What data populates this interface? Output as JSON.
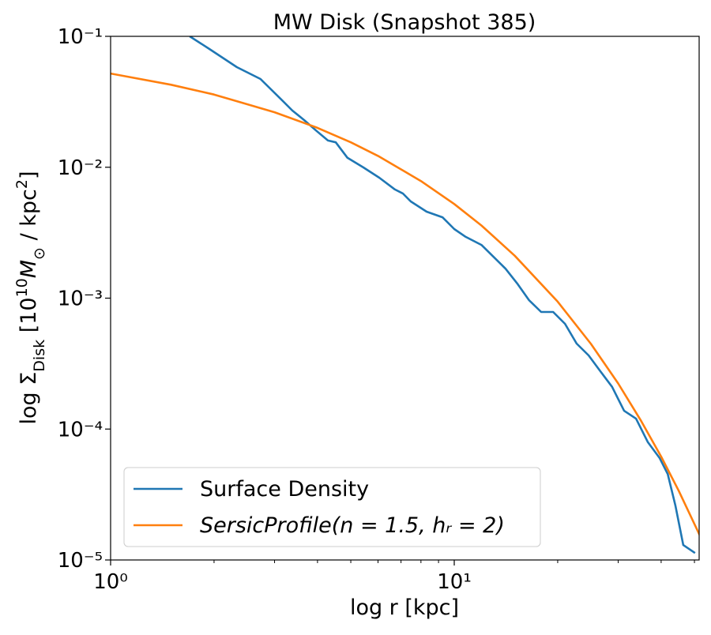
{
  "chart_data": {
    "type": "line",
    "title": "MW Disk (Snapshot 385)",
    "xlabel": "log r [kpc]",
    "ylabel_parts": [
      "log Σ",
      "Disk",
      " [10",
      "10",
      "M",
      "⊙",
      " / kpc",
      "2",
      "]"
    ],
    "xscale": "log",
    "yscale": "log",
    "xlim": [
      1,
      51.6
    ],
    "ylim": [
      1e-05,
      0.1
    ],
    "xticks": [
      {
        "value": 1,
        "label": "10⁰"
      },
      {
        "value": 10,
        "label": "10¹"
      }
    ],
    "xminorticks": [
      2,
      3,
      4,
      5,
      6,
      7,
      8,
      9,
      20,
      30,
      40,
      50
    ],
    "yticks": [
      {
        "value": 1e-05,
        "label": "10⁻⁵"
      },
      {
        "value": 0.0001,
        "label": "10⁻⁴"
      },
      {
        "value": 0.001,
        "label": "10⁻³"
      },
      {
        "value": 0.01,
        "label": "10⁻²"
      },
      {
        "value": 0.1,
        "label": "10⁻¹"
      }
    ],
    "legend": "lower left",
    "series": [
      {
        "name": "Surface Density",
        "color": "#1f77b4",
        "x": [
          1.7,
          1.94,
          2.33,
          2.73,
          3.12,
          3.38,
          3.66,
          3.96,
          4.29,
          4.52,
          4.89,
          5.44,
          6.05,
          6.72,
          7.09,
          7.47,
          8.31,
          9.24,
          10,
          10.8,
          12.0,
          13.0,
          14.1,
          15.3,
          16.5,
          17.9,
          19.4,
          21.0,
          22.7,
          24.6,
          26.6,
          28.8,
          31.2,
          33.8,
          36.6,
          39.6,
          41.8,
          44.0,
          46.4,
          50.2
        ],
        "values": [
          0.1,
          0.08,
          0.0582,
          0.0472,
          0.0334,
          0.0271,
          0.0229,
          0.0191,
          0.016,
          0.0155,
          0.0118,
          0.00997,
          0.00832,
          0.00676,
          0.0063,
          0.00548,
          0.00458,
          0.00415,
          0.00337,
          0.00294,
          0.00255,
          0.00207,
          0.00168,
          0.00128,
          0.000966,
          0.000784,
          0.000784,
          0.000637,
          0.00045,
          0.000365,
          0.000277,
          0.00021,
          0.000138,
          0.00012,
          7.93e-05,
          6e-05,
          4.54e-05,
          2.61e-05,
          1.3e-05,
          1.13e-05
        ]
      },
      {
        "name": "SersicProfile(n = 1.5, hᵣ = 2)",
        "color": "#ff7f0e",
        "x": [
          1,
          1.5,
          2,
          3,
          4,
          5,
          6,
          8,
          10,
          12,
          15,
          20,
          25,
          30,
          35,
          40,
          45,
          52
        ],
        "values": [
          0.052,
          0.0427,
          0.0359,
          0.0263,
          0.02,
          0.0155,
          0.0122,
          0.00785,
          0.00524,
          0.00359,
          0.00211,
          0.000941,
          0.000447,
          0.000223,
          0.000115,
          6.16e-05,
          3.38e-05,
          1.51e-05
        ]
      }
    ]
  }
}
